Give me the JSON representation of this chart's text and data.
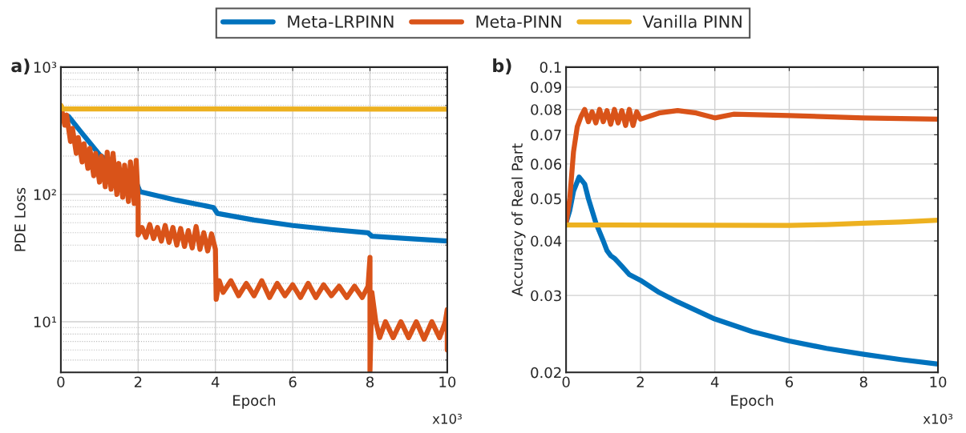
{
  "chart_data": [
    {
      "type": "line",
      "title": "a)",
      "xlabel": "Epoch",
      "ylabel": "PDE Loss",
      "log": "y",
      "grid": true,
      "legend": "top",
      "xlim": [
        0,
        10
      ],
      "xticks": [
        0,
        2,
        4,
        6,
        8,
        10
      ],
      "ylim": [
        4,
        1000
      ],
      "yticks": [
        {
          "value": 10,
          "label": "10¹"
        },
        {
          "value": 100,
          "label": "10²"
        },
        {
          "value": 1000,
          "label": "10³"
        }
      ],
      "annotations": [
        "x10³"
      ],
      "series": [
        {
          "name": "Meta-LRPINN",
          "color": "#0072bd",
          "x": [
            0.2,
            0.5,
            1,
            1.95,
            2.05,
            3,
            3.95,
            4.05,
            5,
            6,
            7,
            7.95,
            8.05,
            9,
            10
          ],
          "values": [
            410,
            315,
            205,
            125,
            105,
            90,
            79,
            71,
            63,
            57,
            53,
            50,
            47,
            45,
            43
          ]
        },
        {
          "name": "Meta-PINN",
          "color": "#d95319",
          "x": [
            0,
            0.1,
            0.15,
            0.25,
            0.3,
            0.4,
            0.45,
            0.55,
            0.6,
            0.7,
            0.75,
            0.85,
            0.9,
            1.0,
            1.05,
            1.15,
            1.2,
            1.3,
            1.35,
            1.45,
            1.5,
            1.6,
            1.65,
            1.75,
            1.8,
            1.9,
            1.95,
            2.0,
            2.0,
            2.1,
            2.2,
            2.3,
            2.4,
            2.5,
            2.6,
            2.7,
            2.8,
            2.9,
            3.0,
            3.1,
            3.2,
            3.3,
            3.4,
            3.5,
            3.6,
            3.7,
            3.8,
            3.9,
            4.0,
            4.02,
            4.1,
            4.2,
            4.4,
            4.6,
            4.8,
            5.0,
            5.2,
            5.4,
            5.6,
            5.8,
            6.0,
            6.2,
            6.4,
            6.6,
            6.8,
            7.0,
            7.2,
            7.4,
            7.6,
            7.8,
            7.95,
            8.0,
            8.0,
            8.05,
            8.15,
            8.25,
            8.4,
            8.6,
            8.8,
            9.0,
            9.2,
            9.4,
            9.6,
            9.8,
            9.95,
            10,
            10
          ],
          "values": [
            500,
            350,
            420,
            260,
            330,
            210,
            280,
            180,
            250,
            160,
            230,
            140,
            210,
            125,
            200,
            115,
            215,
            110,
            210,
            100,
            175,
            95,
            170,
            88,
            180,
            85,
            185,
            90,
            48,
            55,
            46,
            58,
            45,
            55,
            43,
            57,
            42,
            55,
            40,
            54,
            39,
            52,
            38,
            56,
            37,
            50,
            36,
            49,
            37,
            15,
            21,
            17,
            21,
            16,
            20,
            16,
            21,
            15.5,
            20,
            16,
            19.5,
            15.5,
            20,
            15.5,
            19.5,
            16,
            19,
            15.5,
            19,
            15.5,
            19,
            32,
            4.1,
            17,
            10,
            7.5,
            10,
            7.5,
            10,
            7.5,
            10,
            7.3,
            10,
            7.5,
            10,
            12.5,
            6
          ]
        },
        {
          "name": "Vanilla PINN",
          "color": "#edb120",
          "x": [
            0,
            0.05,
            10
          ],
          "values": [
            500,
            470,
            468
          ]
        }
      ]
    },
    {
      "type": "line",
      "title": "b)",
      "xlabel": "Epoch",
      "ylabel": "Accuracy of Real Part",
      "log": "y",
      "grid": true,
      "xlim": [
        0,
        10
      ],
      "xticks": [
        0,
        2,
        4,
        6,
        8,
        10
      ],
      "ylim": [
        0.02,
        0.1
      ],
      "yticks": [
        0.02,
        0.03,
        0.04,
        0.05,
        0.06,
        0.07,
        0.08,
        0.09,
        0.1
      ],
      "annotations": [
        "x10³"
      ],
      "series": [
        {
          "color": "#0072bd",
          "x": [
            0,
            0.1,
            0.2,
            0.35,
            0.5,
            0.6,
            0.8,
            1.0,
            1.1,
            1.2,
            1.3,
            1.5,
            1.7,
            2.0,
            2.5,
            3,
            4,
            5,
            6,
            7,
            8,
            9,
            10
          ],
          "values": [
            0.044,
            0.047,
            0.052,
            0.056,
            0.054,
            0.05,
            0.044,
            0.04,
            0.038,
            0.037,
            0.0365,
            0.035,
            0.0335,
            0.0325,
            0.0305,
            0.029,
            0.0265,
            0.0248,
            0.0236,
            0.0227,
            0.022,
            0.0214,
            0.0209
          ]
        },
        {
          "color": "#d95319",
          "x": [
            0,
            0.1,
            0.2,
            0.3,
            0.4,
            0.5,
            0.6,
            0.7,
            0.8,
            0.9,
            1.0,
            1.1,
            1.2,
            1.3,
            1.4,
            1.5,
            1.6,
            1.7,
            1.8,
            1.9,
            2.0,
            2.5,
            3.0,
            3.5,
            4.0,
            4.5,
            6,
            8,
            10
          ],
          "values": [
            0.044,
            0.05,
            0.064,
            0.073,
            0.077,
            0.08,
            0.075,
            0.079,
            0.0745,
            0.08,
            0.075,
            0.0795,
            0.074,
            0.08,
            0.0745,
            0.0795,
            0.0735,
            0.08,
            0.0735,
            0.079,
            0.076,
            0.0785,
            0.0795,
            0.0785,
            0.0765,
            0.078,
            0.0775,
            0.0765,
            0.076
          ]
        },
        {
          "color": "#edb120",
          "x": [
            0,
            6,
            7,
            8,
            9,
            10
          ],
          "values": [
            0.0435,
            0.0434,
            0.0436,
            0.0439,
            0.0442,
            0.0446
          ]
        }
      ]
    }
  ]
}
